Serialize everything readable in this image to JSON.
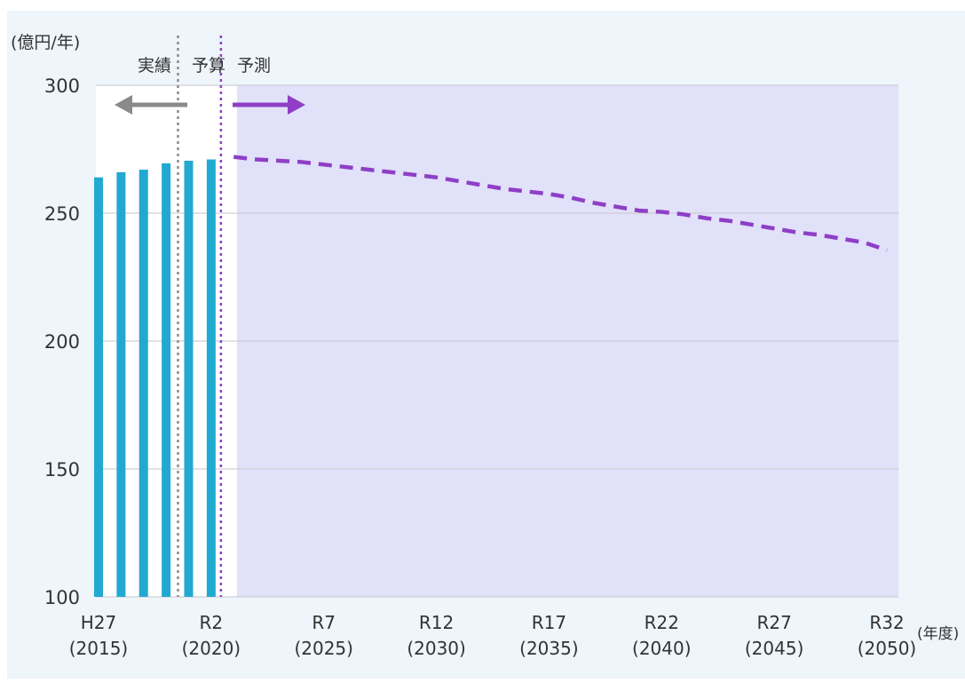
{
  "colors": {
    "panel_bg": "#eef5fb",
    "forecast_bg": "#e1e1fa",
    "bar": "#22a9d2",
    "forecast_line": "#8e3fc6",
    "actual_arrow": "#8a8a8a",
    "grid": "#c6c6cc"
  },
  "chart_data": {
    "type": "bar",
    "y_unit_label": "(億円/年)",
    "x_unit_label": "(年度)",
    "ylim": [
      100,
      300
    ],
    "yticks": [
      100,
      150,
      200,
      250,
      300
    ],
    "x_range": [
      2015,
      2050
    ],
    "grid": true,
    "x_tick_labels": [
      {
        "x": 2015,
        "era": "H27",
        "year": "(2015)"
      },
      {
        "x": 2020,
        "era": "R2",
        "year": "(2020)"
      },
      {
        "x": 2025,
        "era": "R7",
        "year": "(2025)"
      },
      {
        "x": 2030,
        "era": "R12",
        "year": "(2030)"
      },
      {
        "x": 2035,
        "era": "R17",
        "year": "(2035)"
      },
      {
        "x": 2040,
        "era": "R22",
        "year": "(2040)"
      },
      {
        "x": 2045,
        "era": "R27",
        "year": "(2045)"
      },
      {
        "x": 2050,
        "era": "R32",
        "year": "(2050)"
      }
    ],
    "bars": {
      "x": [
        2015,
        2016,
        2017,
        2018,
        2019,
        2020
      ],
      "values": [
        264,
        266,
        267,
        269.5,
        270.5,
        271
      ]
    },
    "forecast": {
      "style": "dashed",
      "x": [
        2021,
        2022,
        2023,
        2024,
        2025,
        2026,
        2027,
        2028,
        2029,
        2030,
        2031,
        2032,
        2033,
        2034,
        2035,
        2036,
        2037,
        2038,
        2039,
        2040,
        2041,
        2042,
        2043,
        2044,
        2045,
        2046,
        2047,
        2048,
        2049,
        2050
      ],
      "values": [
        272,
        271,
        270.5,
        270,
        269,
        268,
        267,
        266,
        265,
        264,
        262.5,
        261,
        259.5,
        258.5,
        257.5,
        256,
        254,
        252.5,
        251,
        250.5,
        249.5,
        248,
        247,
        245.5,
        244,
        242.5,
        241.5,
        240,
        238.5,
        235.5
      ]
    },
    "periods": [
      {
        "label": "実績",
        "from": 2015,
        "to": 2019
      },
      {
        "label": "予算",
        "from": 2019,
        "to": 2020
      },
      {
        "label": "予測",
        "from": 2020,
        "to": 2050
      }
    ]
  }
}
